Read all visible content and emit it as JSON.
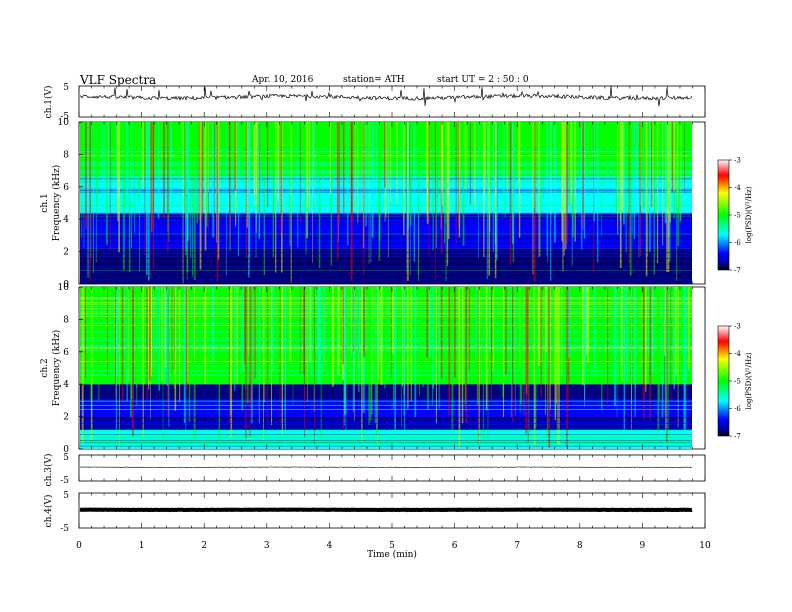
{
  "header": {
    "title": "VLF  Spectra",
    "date": "Apr. 10, 2016",
    "station": "station= ATH",
    "start": "start  UT =   2  : 50 : 0"
  },
  "colorscale": {
    "label": "log(PSD)(V²/Hz)",
    "ticks": [
      "-3",
      "-4",
      "-5",
      "-6",
      "-7"
    ],
    "colors": [
      "#ffffff",
      "#ff0000",
      "#ffff00",
      "#00ff00",
      "#00ffff",
      "#0000ff",
      "#000080",
      "#000000"
    ]
  },
  "chart_data": [
    {
      "type": "line",
      "panel": "ch.1(V)",
      "ylabel": "ch.1(V)",
      "ylim": [
        -5,
        5
      ],
      "ytick_labels": [
        "5",
        "-5"
      ],
      "x_range_min": [
        0,
        9.8
      ],
      "series": [
        {
          "values_approx": "waveform near +2 V with occasional spikes"
        }
      ]
    },
    {
      "type": "heatmap",
      "panel": "ch.1 spectrogram",
      "ylabel": [
        "ch.1",
        "Frequency  (kHz)"
      ],
      "ylim": [
        0,
        10
      ],
      "ytick_labels": [
        "0",
        "2",
        "4",
        "6",
        "8",
        "10"
      ],
      "colorbar_range": [
        -7,
        -3
      ],
      "bands_khz": [
        {
          "from": 0,
          "to": 2.2,
          "logpsd": -6.7
        },
        {
          "from": 2.2,
          "to": 4.4,
          "logpsd": -6.6
        },
        {
          "from": 4.4,
          "to": 6.6,
          "logpsd": -6.0
        },
        {
          "from": 6.6,
          "to": 10,
          "logpsd": -5.2
        }
      ]
    },
    {
      "type": "heatmap",
      "panel": "ch.2 spectrogram",
      "ylabel": [
        "ch.2",
        "Frequency  (kHz)"
      ],
      "ylim": [
        0,
        10
      ],
      "ytick_labels": [
        "0",
        "2",
        "4",
        "6",
        "8",
        "10"
      ],
      "colorbar_range": [
        -7,
        -3
      ],
      "bands_khz": [
        {
          "from": 0,
          "to": 1.2,
          "logpsd": -5.4
        },
        {
          "from": 1.2,
          "to": 3.0,
          "logpsd": -6.4
        },
        {
          "from": 3.0,
          "to": 4.0,
          "logpsd": -6.8
        },
        {
          "from": 4.0,
          "to": 10,
          "logpsd": -5.0
        }
      ]
    },
    {
      "type": "line",
      "panel": "ch.3(V)",
      "ylabel": "ch.3(V)",
      "ylim": [
        -5,
        5
      ],
      "ytick_labels": [
        "5",
        "-5"
      ],
      "series": [
        {
          "values_approx": "flat near 0 V"
        }
      ]
    },
    {
      "type": "line",
      "panel": "ch.4(V)",
      "ylabel": "ch.4(V)",
      "ylim": [
        -5,
        5
      ],
      "ytick_labels": [
        "5",
        "-5"
      ],
      "series": [
        {
          "values_approx": "thick band near 0 V"
        }
      ]
    }
  ],
  "xaxis": {
    "label": "Time  (min)",
    "ticks": [
      "0",
      "1",
      "2",
      "3",
      "4",
      "5",
      "6",
      "7",
      "8",
      "9",
      "10"
    ],
    "xlim": [
      0,
      10
    ]
  }
}
